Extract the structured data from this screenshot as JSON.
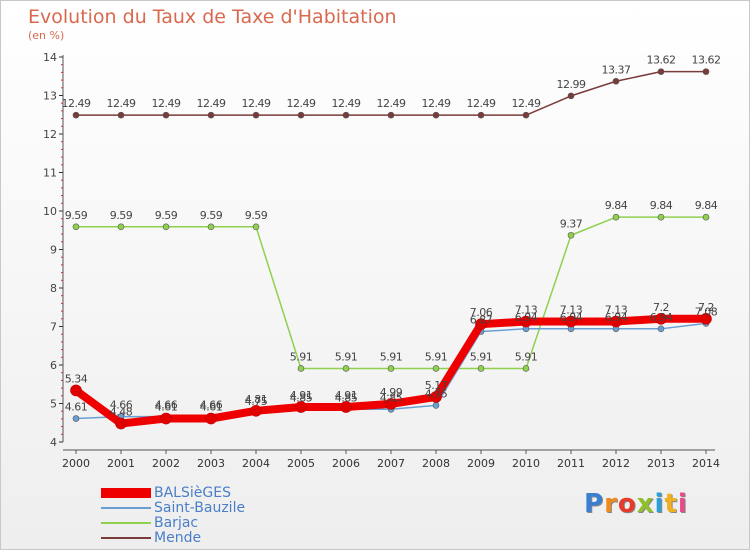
{
  "title": "Evolution du Taux de Taxe d'Habitation",
  "unit": "(en %)",
  "brand": "Proxiti",
  "chart_data": {
    "type": "line",
    "title": "Evolution du Taux de Taxe d'Habitation",
    "ylabel": "(en %)",
    "xlabel": "",
    "categories": [
      "2000",
      "2001",
      "2002",
      "2003",
      "2004",
      "2005",
      "2006",
      "2007",
      "2008",
      "2009",
      "2010",
      "2011",
      "2012",
      "2013",
      "2014"
    ],
    "ylim": [
      4,
      14
    ],
    "yticks": [
      "4",
      "5",
      "6",
      "7",
      "8",
      "9",
      "10",
      "11",
      "12",
      "13",
      "14"
    ],
    "series": [
      {
        "name": "BALSièGES",
        "color": "#ee0000",
        "values": [
          5.34,
          4.48,
          4.61,
          4.61,
          4.81,
          4.91,
          4.91,
          4.99,
          5.17,
          7.06,
          7.13,
          7.13,
          7.13,
          7.2,
          7.2
        ],
        "labels": [
          "5.34",
          "4.48",
          "4.61",
          "4.61",
          "4.81",
          "4.91",
          "4.91",
          "4.99",
          "5.17",
          "7.06",
          "7.13",
          "7.13",
          "7.13",
          "7.2",
          "7.2"
        ]
      },
      {
        "name": "Saint-Bauzile",
        "color": "#6a9fd4",
        "values": [
          4.61,
          4.66,
          4.66,
          4.66,
          4.75,
          4.85,
          4.85,
          4.85,
          4.95,
          6.87,
          6.94,
          6.94,
          6.94,
          6.94,
          7.08
        ],
        "labels": [
          "4.61",
          "4.66",
          "4.66",
          "4.66",
          "4.75",
          "4.85",
          "4.85",
          "4.85",
          "4.95",
          "6.87",
          "6.94",
          "6.94",
          "6.94",
          "6.94",
          "7.08"
        ]
      },
      {
        "name": "Barjac",
        "color": "#8fd14f",
        "values": [
          9.59,
          9.59,
          9.59,
          9.59,
          9.59,
          5.91,
          5.91,
          5.91,
          5.91,
          5.91,
          5.91,
          9.37,
          9.84,
          9.84,
          9.84
        ],
        "labels": [
          "9.59",
          "9.59",
          "9.59",
          "9.59",
          "9.59",
          "5.91",
          "5.91",
          "5.91",
          "5.91",
          "5.91",
          "5.91",
          "9.37",
          "9.84",
          "9.84",
          "9.84"
        ]
      },
      {
        "name": "Mende",
        "color": "#7a3b3b",
        "values": [
          12.49,
          12.49,
          12.49,
          12.49,
          12.49,
          12.49,
          12.49,
          12.49,
          12.49,
          12.49,
          12.49,
          12.99,
          13.37,
          13.62,
          13.62
        ],
        "labels": [
          "12.49",
          "12.49",
          "12.49",
          "12.49",
          "12.49",
          "12.49",
          "12.49",
          "12.49",
          "12.49",
          "12.49",
          "12.49",
          "12.99",
          "13.37",
          "13.62",
          "13.62"
        ]
      }
    ]
  }
}
